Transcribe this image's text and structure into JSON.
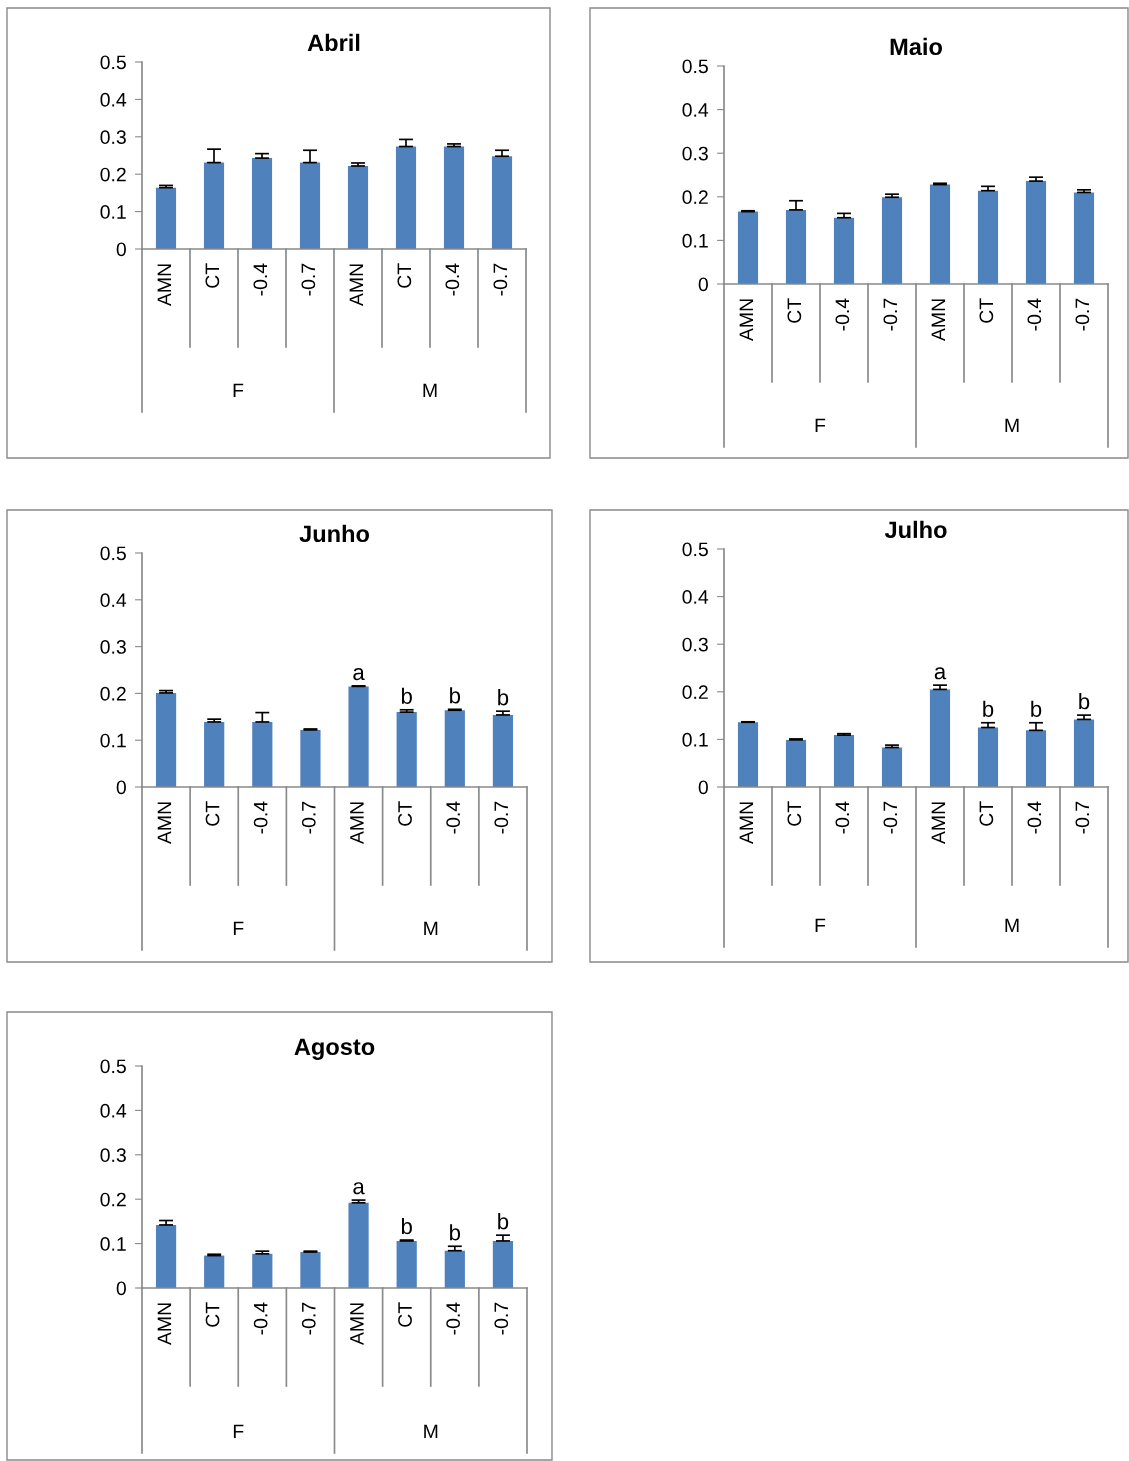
{
  "chart_data": [
    {
      "type": "bar",
      "title": "Abril",
      "categories": [
        "AMN",
        "CT",
        "-0.4",
        "-0.7",
        "AMN",
        "CT",
        "-0.4",
        "-0.7"
      ],
      "color": "#4f81bd",
      "ylim": [
        0,
        0.5
      ],
      "yticks": [
        0,
        0.1,
        0.2,
        0.3,
        0.4,
        0.5
      ],
      "annotations": [
        "F",
        "M"
      ],
      "values": [
        0.164,
        0.231,
        0.243,
        0.231,
        0.222,
        0.274,
        0.274,
        0.248
      ],
      "errors": [
        [
          0.164,
          0.17
        ],
        [
          0.231,
          0.267
        ],
        [
          0.243,
          0.255
        ],
        [
          0.231,
          0.264
        ],
        [
          0.222,
          0.23
        ],
        [
          0.274,
          0.293
        ],
        [
          0.274,
          0.281
        ],
        [
          0.248,
          0.264
        ]
      ]
    },
    {
      "type": "bar",
      "title": "Maio",
      "categories": [
        "AMN",
        "CT",
        "-0.4",
        "-0.7",
        "AMN",
        "CT",
        "-0.4",
        "-0.7"
      ],
      "color": "#4f81bd",
      "ylim": [
        0,
        0.5
      ],
      "yticks": [
        0,
        0.1,
        0.2,
        0.3,
        0.4,
        0.5
      ],
      "annotations": [
        "F",
        "M"
      ],
      "values": [
        0.166,
        0.17,
        0.152,
        0.199,
        0.228,
        0.214,
        0.236,
        0.21
      ],
      "errors": [
        [
          0.166,
          0.168
        ],
        [
          0.17,
          0.191
        ],
        [
          0.152,
          0.162
        ],
        [
          0.199,
          0.206
        ],
        [
          0.228,
          0.231
        ],
        [
          0.214,
          0.224
        ],
        [
          0.236,
          0.245
        ],
        [
          0.21,
          0.216
        ]
      ]
    },
    {
      "type": "bar",
      "title": "Junho",
      "categories": [
        "AMN",
        "CT",
        "-0.4",
        "-0.7",
        "AMN",
        "CT",
        "-0.4",
        "-0.7"
      ],
      "color": "#4f81bd",
      "ylim": [
        0,
        0.5
      ],
      "yticks": [
        0,
        0.1,
        0.2,
        0.3,
        0.4,
        0.5
      ],
      "annotations": [
        "F",
        "M"
      ],
      "values": [
        0.201,
        0.139,
        0.139,
        0.122,
        0.215,
        0.16,
        0.164,
        0.154
      ],
      "errors": [
        [
          0.201,
          0.206
        ],
        [
          0.139,
          0.145
        ],
        [
          0.139,
          0.159
        ],
        [
          0.122,
          0.124
        ],
        [
          0.215,
          0.216
        ],
        [
          0.16,
          0.165
        ],
        [
          0.164,
          0.166
        ],
        [
          0.154,
          0.162
        ]
      ],
      "value_labels": [
        null,
        null,
        null,
        null,
        "a",
        "b",
        "b",
        "b"
      ]
    },
    {
      "type": "bar",
      "title": "Julho",
      "categories": [
        "AMN",
        "CT",
        "-0.4",
        "-0.7",
        "AMN",
        "CT",
        "-0.4",
        "-0.7"
      ],
      "color": "#4f81bd",
      "ylim": [
        0,
        0.5
      ],
      "yticks": [
        0,
        0.1,
        0.2,
        0.3,
        0.4,
        0.5
      ],
      "annotations": [
        "F",
        "M"
      ],
      "values": [
        0.136,
        0.099,
        0.109,
        0.083,
        0.205,
        0.125,
        0.119,
        0.142
      ],
      "errors": [
        [
          0.136,
          0.137
        ],
        [
          0.099,
          0.101
        ],
        [
          0.109,
          0.112
        ],
        [
          0.083,
          0.088
        ],
        [
          0.205,
          0.214
        ],
        [
          0.125,
          0.135
        ],
        [
          0.119,
          0.135
        ],
        [
          0.142,
          0.151
        ]
      ],
      "value_labels": [
        null,
        null,
        null,
        null,
        "a",
        "b",
        "b",
        "b"
      ]
    },
    {
      "type": "bar",
      "title": "Agosto",
      "categories": [
        "AMN",
        "CT",
        "-0.4",
        "-0.7",
        "AMN",
        "CT",
        "-0.4",
        "-0.7"
      ],
      "color": "#4f81bd",
      "ylim": [
        0,
        0.5
      ],
      "yticks": [
        0,
        0.1,
        0.2,
        0.3,
        0.4,
        0.5
      ],
      "annotations": [
        "F",
        "M"
      ],
      "values": [
        0.142,
        0.073,
        0.077,
        0.081,
        0.192,
        0.106,
        0.084,
        0.106
      ],
      "errors": [
        [
          0.142,
          0.152
        ],
        [
          0.073,
          0.076
        ],
        [
          0.077,
          0.083
        ],
        [
          0.081,
          0.083
        ],
        [
          0.192,
          0.198
        ],
        [
          0.106,
          0.108
        ],
        [
          0.084,
          0.094
        ],
        [
          0.106,
          0.119
        ]
      ],
      "value_labels": [
        null,
        null,
        null,
        null,
        "a",
        "b",
        "b",
        "b"
      ]
    }
  ]
}
